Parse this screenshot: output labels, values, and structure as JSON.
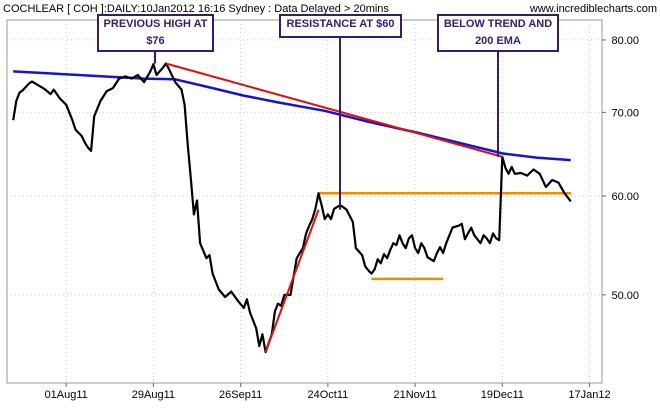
{
  "header": {
    "title": "COCHLEAR [ COH ]:DAILY:10Jan2012 16:16 Sydney : Data Delayed > 20mins",
    "site": "www.incrediblecharts.com"
  },
  "annotations": [
    {
      "line1": "PREVIOUS HIGH AT",
      "line2": "$76"
    },
    {
      "line1": "RESISTANCE AT $60",
      "line2": ""
    },
    {
      "line1": "BELOW TREND AND",
      "line2": "200 EMA"
    }
  ],
  "colors": {
    "price": "#000000",
    "ema": "#1414d2",
    "trendline": "#e01010",
    "levels": "#f08c00",
    "callout": "#3a1a6e",
    "grid": "#aaaaaa"
  },
  "chart_data": {
    "type": "line",
    "title": "",
    "xlabel": "",
    "ylabel": "",
    "ylim": [
      42.5,
      83
    ],
    "yticks": [
      "80.00",
      "70.00",
      "60.00",
      "50.00"
    ],
    "y_scale": "log",
    "x_ticks": [
      "01Aug11",
      "29Aug11",
      "26Sep11",
      "24Oct11",
      "21Nov11",
      "19Dec11",
      "17Jan12"
    ],
    "grid": true,
    "series": [
      {
        "kind": "price",
        "values": [
          [
            "2011-07-15",
            69.0
          ],
          [
            "2011-07-16",
            71.5
          ],
          [
            "2011-07-17",
            72.6
          ],
          [
            "2011-07-18",
            72.9
          ],
          [
            "2011-07-20",
            73.8
          ],
          [
            "2011-07-21",
            74.1
          ],
          [
            "2011-07-23",
            73.6
          ],
          [
            "2011-07-25",
            73.1
          ],
          [
            "2011-07-27",
            72.4
          ],
          [
            "2011-07-28",
            73.0
          ],
          [
            "2011-07-30",
            71.8
          ],
          [
            "2011-08-01",
            71.0
          ],
          [
            "2011-08-03",
            69.0
          ],
          [
            "2011-08-04",
            67.8
          ],
          [
            "2011-08-06",
            67.0
          ],
          [
            "2011-08-07",
            66.2
          ],
          [
            "2011-08-08",
            65.6
          ],
          [
            "2011-08-09",
            65.2
          ],
          [
            "2011-08-10",
            69.5
          ],
          [
            "2011-08-12",
            71.5
          ],
          [
            "2011-08-14",
            72.8
          ],
          [
            "2011-08-16",
            73.2
          ],
          [
            "2011-08-18",
            74.5
          ],
          [
            "2011-08-20",
            74.8
          ],
          [
            "2011-08-22",
            74.5
          ],
          [
            "2011-08-24",
            75.0
          ],
          [
            "2011-08-26",
            74.0
          ],
          [
            "2011-08-28",
            75.5
          ],
          [
            "2011-08-29",
            76.5
          ],
          [
            "2011-08-30",
            75.0
          ],
          [
            "2011-09-01",
            76.0
          ],
          [
            "2011-09-02",
            76.6
          ],
          [
            "2011-09-03",
            75.8
          ],
          [
            "2011-09-05",
            74.0
          ],
          [
            "2011-09-07",
            73.0
          ],
          [
            "2011-09-08",
            71.0
          ],
          [
            "2011-09-09",
            66.0
          ],
          [
            "2011-09-10",
            62.0
          ],
          [
            "2011-09-11",
            58.0
          ],
          [
            "2011-09-12",
            59.5
          ],
          [
            "2011-09-13",
            55.0
          ],
          [
            "2011-09-15",
            53.5
          ],
          [
            "2011-09-16",
            53.8
          ],
          [
            "2011-09-17",
            52.0
          ],
          [
            "2011-09-19",
            50.5
          ],
          [
            "2011-09-21",
            49.8
          ],
          [
            "2011-09-23",
            50.3
          ],
          [
            "2011-09-25",
            49.5
          ],
          [
            "2011-09-27",
            48.8
          ],
          [
            "2011-09-28",
            49.6
          ],
          [
            "2011-09-29",
            48.4
          ],
          [
            "2011-10-01",
            47.0
          ],
          [
            "2011-10-02",
            45.5
          ],
          [
            "2011-10-03",
            46.5
          ],
          [
            "2011-10-04",
            45.0
          ],
          [
            "2011-10-06",
            46.5
          ],
          [
            "2011-10-07",
            48.5
          ],
          [
            "2011-10-08",
            49.2
          ],
          [
            "2011-10-09",
            49.0
          ],
          [
            "2011-10-10",
            50.0
          ],
          [
            "2011-10-12",
            50.0
          ],
          [
            "2011-10-14",
            53.5
          ],
          [
            "2011-10-15",
            54.0
          ],
          [
            "2011-10-16",
            54.5
          ],
          [
            "2011-10-17",
            56.0
          ],
          [
            "2011-10-18",
            56.8
          ],
          [
            "2011-10-19",
            57.5
          ],
          [
            "2011-10-20",
            58.6
          ],
          [
            "2011-10-21",
            60.3
          ],
          [
            "2011-10-22",
            59.0
          ],
          [
            "2011-10-23",
            57.5
          ],
          [
            "2011-10-24",
            58.0
          ],
          [
            "2011-10-25",
            57.5
          ],
          [
            "2011-10-26",
            58.6
          ],
          [
            "2011-10-28",
            59.0
          ],
          [
            "2011-10-30",
            58.5
          ],
          [
            "2011-11-01",
            57.2
          ],
          [
            "2011-11-02",
            54.5
          ],
          [
            "2011-11-04",
            53.8
          ],
          [
            "2011-11-05",
            52.7
          ],
          [
            "2011-11-06",
            52.3
          ],
          [
            "2011-11-07",
            52.0
          ],
          [
            "2011-11-08",
            52.4
          ],
          [
            "2011-11-09",
            53.4
          ],
          [
            "2011-11-10",
            53.0
          ],
          [
            "2011-11-11",
            53.9
          ],
          [
            "2011-11-12",
            53.5
          ],
          [
            "2011-11-13",
            54.3
          ],
          [
            "2011-11-14",
            55.0
          ],
          [
            "2011-11-15",
            54.8
          ],
          [
            "2011-11-16",
            55.8
          ],
          [
            "2011-11-17",
            55.0
          ],
          [
            "2011-11-18",
            54.5
          ],
          [
            "2011-11-19",
            55.5
          ],
          [
            "2011-11-20",
            55.8
          ],
          [
            "2011-11-21",
            54.5
          ],
          [
            "2011-11-22",
            54.0
          ],
          [
            "2011-11-23",
            55.0
          ],
          [
            "2011-11-24",
            54.5
          ],
          [
            "2011-11-25",
            53.6
          ],
          [
            "2011-11-27",
            53.2
          ],
          [
            "2011-11-28",
            54.0
          ],
          [
            "2011-11-29",
            54.6
          ],
          [
            "2011-11-30",
            54.0
          ],
          [
            "2011-12-01",
            55.0
          ],
          [
            "2011-12-03",
            56.6
          ],
          [
            "2011-12-05",
            56.8
          ],
          [
            "2011-12-06",
            57.0
          ],
          [
            "2011-12-07",
            55.4
          ],
          [
            "2011-12-08",
            56.0
          ],
          [
            "2011-12-09",
            56.6
          ],
          [
            "2011-12-10",
            55.8
          ],
          [
            "2011-12-12",
            55.0
          ],
          [
            "2011-12-13",
            55.8
          ],
          [
            "2011-12-14",
            55.5
          ],
          [
            "2011-12-15",
            55.0
          ],
          [
            "2011-12-16",
            56.0
          ],
          [
            "2011-12-17",
            55.5
          ],
          [
            "2011-12-18",
            55.3
          ],
          [
            "2011-12-19",
            64.5
          ],
          [
            "2011-12-20",
            63.2
          ],
          [
            "2011-12-21",
            62.5
          ],
          [
            "2011-12-22",
            63.3
          ],
          [
            "2011-12-23",
            62.5
          ],
          [
            "2011-12-25",
            62.6
          ],
          [
            "2011-12-27",
            62.3
          ],
          [
            "2011-12-29",
            63.0
          ],
          [
            "2011-12-31",
            62.5
          ],
          [
            "2012-01-02",
            61.0
          ],
          [
            "2012-01-04",
            61.8
          ],
          [
            "2012-01-06",
            61.5
          ],
          [
            "2012-01-08",
            60.3
          ],
          [
            "2012-01-10",
            59.4
          ]
        ]
      },
      {
        "kind": "ema",
        "values": [
          [
            "2011-07-15",
            75.5
          ],
          [
            "2011-08-05",
            75.0
          ],
          [
            "2011-08-26",
            74.5
          ],
          [
            "2011-09-05",
            74.4
          ],
          [
            "2011-09-16",
            73.3
          ],
          [
            "2011-09-27",
            72.2
          ],
          [
            "2011-10-08",
            71.3
          ],
          [
            "2011-10-23",
            70.2
          ],
          [
            "2011-11-06",
            68.8
          ],
          [
            "2011-11-21",
            67.5
          ],
          [
            "2011-12-05",
            66.2
          ],
          [
            "2011-12-19",
            64.9
          ],
          [
            "2011-12-30",
            64.4
          ],
          [
            "2012-01-10",
            64.1
          ]
        ]
      }
    ],
    "trendlines": [
      {
        "kind": "downtrend",
        "from": [
          "2011-09-02",
          76.6
        ],
        "to": [
          "2011-12-19",
          64.5
        ]
      },
      {
        "kind": "uptrend",
        "from": [
          "2011-10-04",
          45.0
        ],
        "to": [
          "2011-10-21",
          58.5
        ]
      }
    ],
    "levels": [
      {
        "kind": "resistance",
        "from": "2011-10-21",
        "to": "2012-01-10",
        "y": 60.3
      },
      {
        "kind": "support",
        "from": "2011-11-07",
        "to": "2011-11-30",
        "y": 51.5
      }
    ]
  }
}
